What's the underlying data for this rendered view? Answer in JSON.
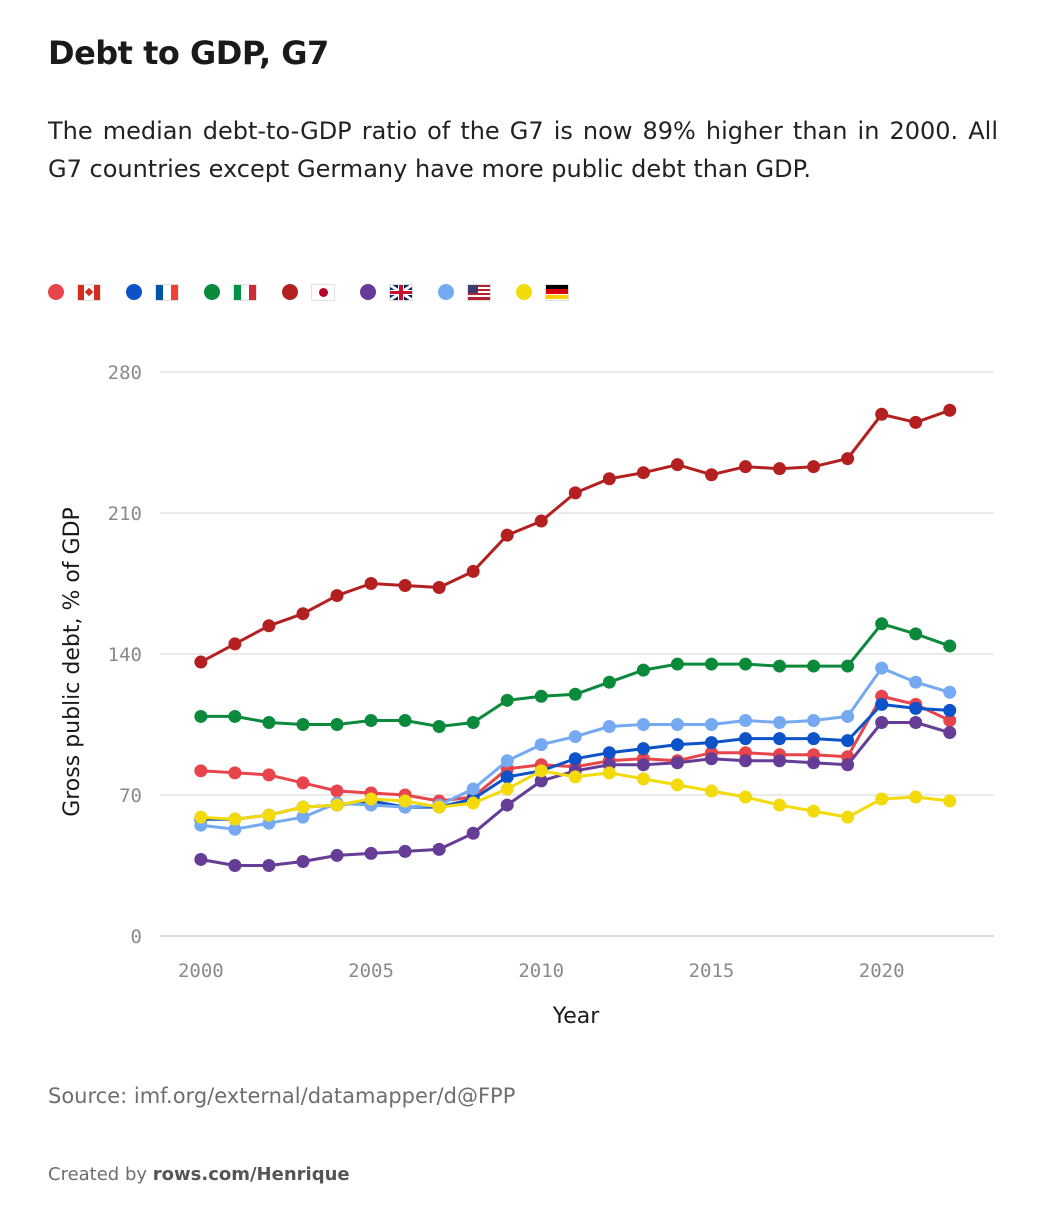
{
  "title": "Debt to GDP, G7",
  "subtitle": "The median debt-to-GDP ratio of the G7 is now 89% higher than in 2000. All G7 countries except Germany have more public debt than GDP.",
  "source": "Source: imf.org/external/datamapper/d@FPP",
  "credit": {
    "prefix": "Created by ",
    "link": "rows.com/Henrique"
  },
  "chart_data": {
    "type": "line",
    "title": "Debt to GDP, G7",
    "xlabel": "Year",
    "ylabel": "Gross public debt, % of GDP",
    "xlim": [
      1998.8,
      2023.3
    ],
    "ylim": [
      0,
      280
    ],
    "yticks": [
      0,
      70,
      140,
      210,
      280
    ],
    "xticks": [
      2000,
      2005,
      2010,
      2015,
      2020
    ],
    "grid": true,
    "legend_position": "top-left",
    "x": [
      2000,
      2001,
      2002,
      2003,
      2004,
      2005,
      2006,
      2007,
      2008,
      2009,
      2010,
      2011,
      2012,
      2013,
      2014,
      2015,
      2016,
      2017,
      2018,
      2019,
      2020,
      2021,
      2022
    ],
    "series": [
      {
        "name": "Canada",
        "flag": "CA",
        "color": "#e8444b",
        "values": [
          82,
          81,
          80,
          76,
          72,
          71,
          70,
          67,
          69,
          83,
          85,
          84,
          87,
          88,
          87,
          91,
          91,
          90,
          90,
          89,
          119,
          115,
          107
        ]
      },
      {
        "name": "France",
        "flag": "FR",
        "color": "#0c52c8",
        "values": [
          58,
          58,
          60,
          64,
          65,
          67,
          64,
          64,
          68,
          79,
          82,
          88,
          91,
          93,
          95,
          96,
          98,
          98,
          98,
          97,
          115,
          113,
          112
        ]
      },
      {
        "name": "Italy",
        "flag": "IT",
        "color": "#0b8a3c",
        "values": [
          109,
          109,
          106,
          105,
          105,
          107,
          107,
          104,
          106,
          117,
          119,
          120,
          126,
          132,
          135,
          135,
          135,
          134,
          134,
          134,
          155,
          150,
          144
        ]
      },
      {
        "name": "Japan",
        "flag": "JP",
        "color": "#b41f20",
        "values": [
          136,
          145,
          154,
          160,
          169,
          175,
          174,
          173,
          181,
          199,
          206,
          220,
          227,
          230,
          234,
          229,
          233,
          232,
          233,
          237,
          259,
          255,
          261
        ]
      },
      {
        "name": "United Kingdom",
        "flag": "GB",
        "color": "#653c96",
        "values": [
          38,
          35,
          35,
          37,
          40,
          41,
          42,
          43,
          51,
          65,
          77,
          82,
          85,
          85,
          86,
          88,
          87,
          87,
          86,
          85,
          106,
          106,
          101
        ]
      },
      {
        "name": "United States",
        "flag": "US",
        "color": "#75aaf2",
        "values": [
          55,
          53,
          56,
          59,
          66,
          65,
          64,
          65,
          73,
          87,
          95,
          99,
          104,
          105,
          105,
          105,
          107,
          106,
          107,
          109,
          133,
          126,
          121
        ]
      },
      {
        "name": "Germany",
        "flag": "DE",
        "color": "#f3da0b",
        "values": [
          59,
          58,
          60,
          64,
          65,
          68,
          67,
          64,
          66,
          73,
          82,
          79,
          81,
          78,
          75,
          72,
          69,
          65,
          62,
          59,
          68,
          69,
          67
        ]
      }
    ]
  }
}
